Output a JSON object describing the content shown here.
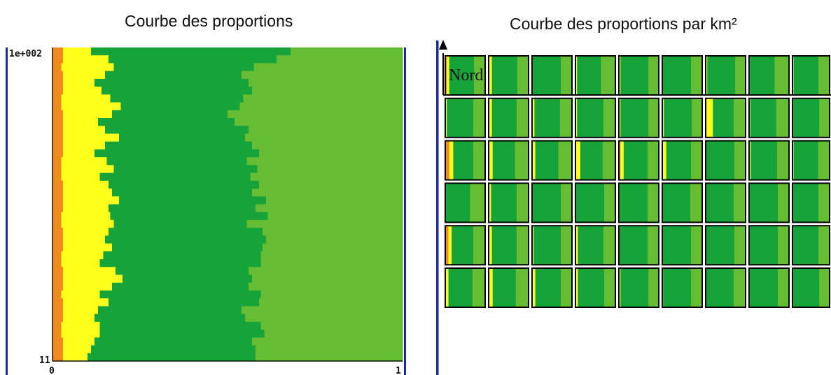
{
  "chart_data": [
    {
      "type": "area",
      "title": "Courbe des proportions",
      "orientation": "horizontal-stacked-100",
      "y_tick_labels": [
        "1e+002",
        "11"
      ],
      "x_tick_labels": [
        "0",
        "1"
      ],
      "ylim": [
        11,
        100
      ],
      "xlim": [
        0,
        1
      ],
      "grid": false,
      "series": [
        {
          "name": "",
          "color": "#f08a1c",
          "values": [
            0.03,
            0.03,
            0.025,
            0.03,
            0.03,
            0.03,
            0.025,
            0.025,
            0.03,
            0.03,
            0.03,
            0.03,
            0.03,
            0.03,
            0.025,
            0.025,
            0.025,
            0.03,
            0.03,
            0.03,
            0.03,
            0.025,
            0.025,
            0.03,
            0.03,
            0.03,
            0.025,
            0.025,
            0.03,
            0.03,
            0.03,
            0.025,
            0.03,
            0.03,
            0.03,
            0.025,
            0.025,
            0.03,
            0.03,
            0.03
          ]
        },
        {
          "name": "",
          "color": "#ffff1e",
          "values": [
            0.08,
            0.13,
            0.15,
            0.12,
            0.09,
            0.11,
            0.14,
            0.17,
            0.14,
            0.1,
            0.12,
            0.16,
            0.12,
            0.09,
            0.13,
            0.15,
            0.11,
            0.13,
            0.14,
            0.16,
            0.13,
            0.14,
            0.15,
            0.13,
            0.12,
            0.14,
            0.12,
            0.11,
            0.15,
            0.17,
            0.14,
            0.11,
            0.13,
            0.1,
            0.09,
            0.11,
            0.11,
            0.09,
            0.08,
            0.07
          ]
        },
        {
          "name": "",
          "color": "#16a43a",
          "values": [
            0.57,
            0.48,
            0.4,
            0.39,
            0.44,
            0.43,
            0.38,
            0.34,
            0.33,
            0.39,
            0.41,
            0.36,
            0.42,
            0.47,
            0.4,
            0.41,
            0.43,
            0.43,
            0.4,
            0.42,
            0.42,
            0.45,
            0.38,
            0.44,
            0.46,
            0.43,
            0.45,
            0.46,
            0.38,
            0.37,
            0.39,
            0.46,
            0.43,
            0.41,
            0.43,
            0.46,
            0.47,
            0.45,
            0.47,
            0.48
          ]
        },
        {
          "name": "",
          "color": "#66bc33",
          "values": [
            0.32,
            0.36,
            0.425,
            0.46,
            0.44,
            0.43,
            0.455,
            0.465,
            0.5,
            0.48,
            0.44,
            0.45,
            0.43,
            0.41,
            0.445,
            0.415,
            0.435,
            0.41,
            0.43,
            0.39,
            0.42,
            0.385,
            0.445,
            0.4,
            0.39,
            0.4,
            0.405,
            0.405,
            0.44,
            0.43,
            0.44,
            0.405,
            0.41,
            0.46,
            0.45,
            0.405,
            0.395,
            0.43,
            0.42,
            0.42
          ]
        }
      ]
    },
    {
      "type": "heatmap",
      "title": "Courbe des proportions par km²",
      "label": "Nord",
      "rows": 6,
      "columns": 9,
      "palette": {
        "orange": "#f08a1c",
        "yellow": "#ffff1e",
        "dark_green": "#16a43a",
        "light_green": "#66bc33",
        "frame": "#000000",
        "axis": "#1a2a9c"
      },
      "cells": [
        [
          [
            0.04,
            0.06,
            0.62,
            0.28
          ],
          [
            0.0,
            0.08,
            0.64,
            0.28
          ],
          [
            0.0,
            0.0,
            0.72,
            0.28
          ],
          [
            0.0,
            0.04,
            0.6,
            0.36
          ],
          [
            0.0,
            0.04,
            0.7,
            0.26
          ],
          [
            0.0,
            0.0,
            0.72,
            0.28
          ],
          [
            0.0,
            0.04,
            0.7,
            0.26
          ],
          [
            0.0,
            0.02,
            0.62,
            0.36
          ],
          [
            0.0,
            0.03,
            0.67,
            0.3
          ]
        ],
        [
          [
            0.0,
            0.04,
            0.66,
            0.3
          ],
          [
            0.0,
            0.08,
            0.62,
            0.3
          ],
          [
            0.0,
            0.06,
            0.64,
            0.3
          ],
          [
            0.0,
            0.04,
            0.66,
            0.3
          ],
          [
            0.0,
            0.04,
            0.7,
            0.26
          ],
          [
            0.0,
            0.04,
            0.7,
            0.26
          ],
          [
            0.02,
            0.16,
            0.52,
            0.3
          ],
          [
            0.0,
            0.03,
            0.65,
            0.32
          ],
          [
            0.0,
            0.02,
            0.7,
            0.28
          ]
        ],
        [
          [
            0.1,
            0.1,
            0.5,
            0.3
          ],
          [
            0.0,
            0.1,
            0.56,
            0.34
          ],
          [
            0.0,
            0.08,
            0.58,
            0.34
          ],
          [
            0.0,
            0.12,
            0.56,
            0.32
          ],
          [
            0.04,
            0.08,
            0.6,
            0.28
          ],
          [
            0.0,
            0.1,
            0.62,
            0.28
          ],
          [
            0.0,
            0.0,
            0.72,
            0.28
          ],
          [
            0.0,
            0.04,
            0.66,
            0.3
          ],
          [
            0.0,
            0.03,
            0.66,
            0.31
          ]
        ],
        [
          [
            0.0,
            0.0,
            0.62,
            0.38
          ],
          [
            0.0,
            0.06,
            0.64,
            0.3
          ],
          [
            0.0,
            0.0,
            0.72,
            0.28
          ],
          [
            0.0,
            0.0,
            0.72,
            0.28
          ],
          [
            0.0,
            0.02,
            0.7,
            0.28
          ],
          [
            0.0,
            0.0,
            0.7,
            0.3
          ],
          [
            0.0,
            0.0,
            0.7,
            0.3
          ],
          [
            0.0,
            0.0,
            0.72,
            0.28
          ],
          [
            0.0,
            0.0,
            0.7,
            0.3
          ]
        ],
        [
          [
            0.08,
            0.08,
            0.54,
            0.3
          ],
          [
            0.0,
            0.08,
            0.62,
            0.3
          ],
          [
            0.0,
            0.04,
            0.68,
            0.28
          ],
          [
            0.0,
            0.06,
            0.64,
            0.3
          ],
          [
            0.0,
            0.0,
            0.72,
            0.28
          ],
          [
            0.0,
            0.0,
            0.72,
            0.28
          ],
          [
            0.0,
            0.0,
            0.72,
            0.28
          ],
          [
            0.0,
            0.0,
            0.72,
            0.28
          ],
          [
            0.0,
            0.0,
            0.7,
            0.3
          ]
        ],
        [
          [
            0.0,
            0.08,
            0.6,
            0.32
          ],
          [
            0.0,
            0.1,
            0.58,
            0.32
          ],
          [
            0.0,
            0.08,
            0.64,
            0.28
          ],
          [
            0.0,
            0.06,
            0.66,
            0.28
          ],
          [
            0.0,
            0.04,
            0.7,
            0.26
          ],
          [
            0.0,
            0.02,
            0.7,
            0.28
          ],
          [
            0.0,
            0.0,
            0.7,
            0.3
          ],
          [
            0.0,
            0.0,
            0.72,
            0.28
          ],
          [
            0.0,
            0.0,
            0.72,
            0.28
          ]
        ]
      ]
    }
  ]
}
